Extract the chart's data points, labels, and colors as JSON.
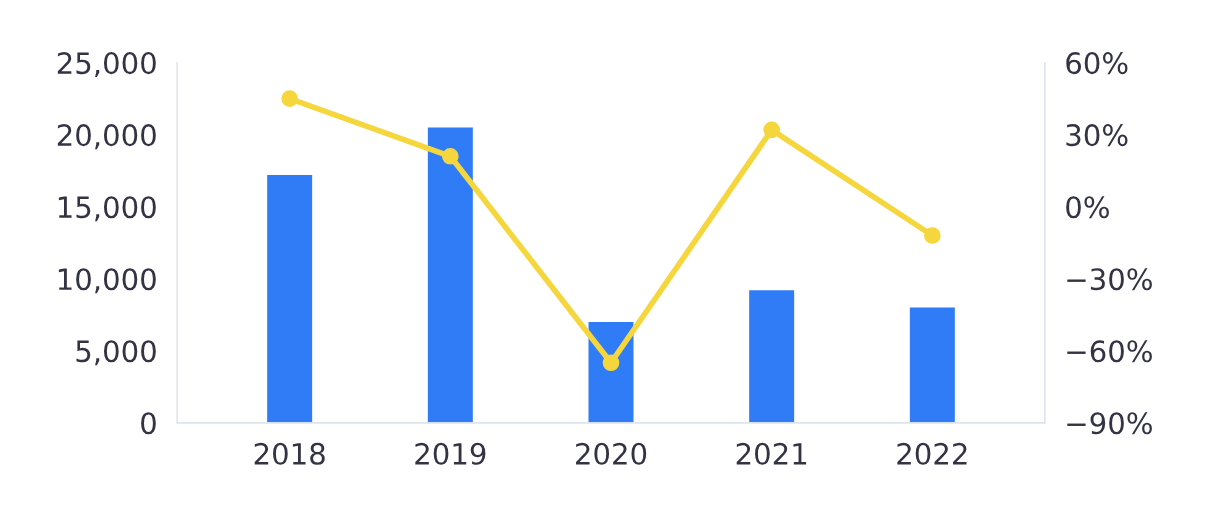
{
  "chart_data": {
    "type": "bar",
    "categories": [
      "2018",
      "2019",
      "2020",
      "2021",
      "2022"
    ],
    "series": [
      {
        "color": "#2f7cf6",
        "values": [
          17200,
          20500,
          7000,
          9200,
          8000
        ]
      },
      {
        "type": "line",
        "axis": "y2",
        "color": "#f5d63d",
        "values": [
          45,
          21,
          -65,
          32,
          -12
        ],
        "marker": "circle"
      }
    ],
    "ylim": [
      0,
      25000
    ],
    "yticks": [
      {
        "value": 0,
        "label": "0"
      },
      {
        "value": 5000,
        "label": "5,000"
      },
      {
        "value": 10000,
        "label": "10,000"
      },
      {
        "value": 15000,
        "label": "15,000"
      },
      {
        "value": 20000,
        "label": "20,000"
      },
      {
        "value": 25000,
        "label": "25,000"
      }
    ],
    "y2lim": [
      -90,
      60
    ],
    "y2ticks": [
      {
        "value": -90,
        "label": "−90%"
      },
      {
        "value": -60,
        "label": "−60%"
      },
      {
        "value": -30,
        "label": "−30%"
      },
      {
        "value": 0,
        "label": "0%"
      },
      {
        "value": 30,
        "label": "30%"
      },
      {
        "value": 60,
        "label": "60%"
      }
    ],
    "grid": false,
    "legend": false
  }
}
